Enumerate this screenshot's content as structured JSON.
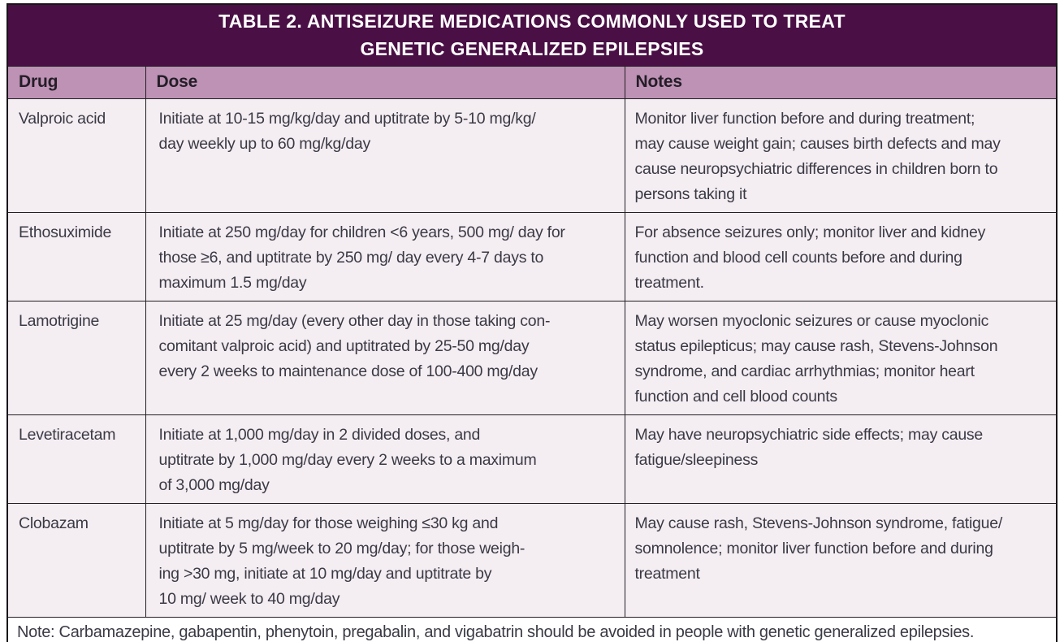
{
  "table": {
    "title": "TABLE 2.  ANTISEIZURE MEDICATIONS COMMONLY USED TO TREAT\nGENETIC GENERALIZED EPILEPSIES",
    "columns": [
      "Drug",
      "Dose",
      "Notes"
    ],
    "rows": [
      {
        "drug": "Valproic acid",
        "dose": "Initiate at 10-15 mg/kg/day and uptitrate by 5-10 mg/kg/\nday weekly up to 60 mg/kg/day",
        "notes": "Monitor liver function before and during treatment;\nmay cause weight gain; causes birth defects and may\ncause neuropsychiatric differences in children born to\npersons taking it"
      },
      {
        "drug": "Ethosuximide",
        "dose": "Initiate at 250 mg/day for children <6 years, 500 mg/ day for\nthose ≥6, and uptitrate by 250 mg/ day every 4-7 days to\nmaximum 1.5 mg/day",
        "notes": "For absence seizures only; monitor liver and kidney\nfunction and blood cell counts before and during\ntreatment."
      },
      {
        "drug": "Lamotrigine",
        "dose": "Initiate at 25 mg/day (every other day in those taking con-\ncomitant valproic acid) and uptitrated by 25-50 mg/day\nevery 2 weeks to maintenance dose of 100-400 mg/day",
        "notes": "May worsen myoclonic seizures or cause myoclonic\nstatus epilepticus; may cause rash, Stevens-Johnson\nsyndrome, and cardiac arrhythmias; monitor heart\nfunction and cell blood counts"
      },
      {
        "drug": "Levetiracetam",
        "dose": "Initiate at 1,000 mg/day in 2 divided doses, and\nuptitrate by 1,000 mg/day every 2 weeks to a maximum\nof 3,000 mg/day",
        "notes": "May have neuropsychiatric side effects; may cause\nfatigue/sleepiness"
      },
      {
        "drug": "Clobazam",
        "dose": "Initiate at 5 mg/day for those weighing ≤30 kg and\nuptitrate by 5 mg/week to 20 mg/day; for those weigh-\ning >30 mg, initiate at 10 mg/day and uptitrate by\n10 mg/ week to 40 mg/day",
        "notes": "May cause rash, Stevens-Johnson syndrome, fatigue/\nsomnolence; monitor liver function before and during\ntreatment"
      }
    ],
    "note": "Note: Carbamazepine, gabapentin, phenytoin, pregabalin, and vigabatrin should be avoided in people with genetic generalized epilepsies.",
    "colors": {
      "title_band_bg": "#4a0f45",
      "title_text": "#ffffff",
      "column_header_bg": "#bd92b5",
      "column_header_text": "#241d27",
      "row_bg": "#f4edf2",
      "note_bg": "#ffffff",
      "body_text": "#3a3a45",
      "border": "#231f24"
    }
  }
}
